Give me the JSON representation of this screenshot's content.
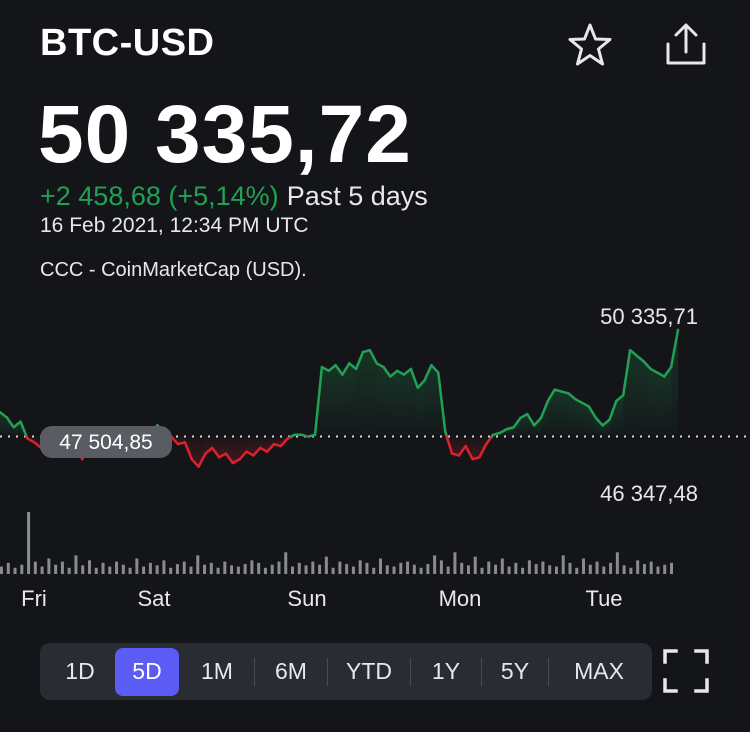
{
  "header": {
    "ticker": "BTC-USD",
    "price": "50 335,72",
    "change": "+2 458,68 (+5,14%)",
    "period": "Past 5 days",
    "timestamp": "16 Feb 2021, 12:34 PM UTC",
    "source": "CCC - CoinMarketCap (USD)."
  },
  "icons": {
    "favorite": "star-icon",
    "share": "share-icon",
    "fullscreen": "fullscreen-icon"
  },
  "colors": {
    "up": "#21a154",
    "down": "#e0202b",
    "accent": "#5b5cf6",
    "background": "#141519"
  },
  "chart_data": {
    "type": "line",
    "x_labels": [
      "Fri",
      "Sat",
      "Sun",
      "Mon",
      "Tue"
    ],
    "previous_close": 47504.85,
    "previous_close_label": "47 504,85",
    "high_label": "50 335,71",
    "low_label": "46 347,48",
    "ylim": [
      46347.48,
      50335.71
    ],
    "price_series": [
      48150,
      48010,
      47750,
      47900,
      47450,
      47350,
      47200,
      47380,
      47150,
      47600,
      47700,
      47450,
      46900,
      47300,
      47600,
      47750,
      47350,
      47550,
      47400,
      47600,
      47700,
      47500,
      47650,
      47800,
      47600,
      47500,
      47300,
      47350,
      46900,
      46700,
      47050,
      47200,
      46950,
      47050,
      46800,
      46900,
      47100,
      47000,
      47200,
      47100,
      47300,
      47250,
      47450,
      47550,
      47550,
      47500,
      47550,
      49350,
      49250,
      49400,
      49150,
      49450,
      49300,
      49750,
      49800,
      49450,
      49350,
      49100,
      49250,
      49150,
      49300,
      48800,
      49000,
      49400,
      49200,
      47650,
      47050,
      47000,
      47250,
      46900,
      46950,
      47300,
      47550,
      47600,
      47700,
      47750,
      48000,
      48100,
      47800,
      48000,
      48450,
      48750,
      48700,
      48650,
      48500,
      48400,
      48300,
      48000,
      47800,
      47950,
      48450,
      48600,
      49800,
      49650,
      49500,
      49300,
      49200,
      49100,
      49350,
      50335.71
    ],
    "volume_series": [
      0.12,
      0.18,
      0.1,
      0.15,
      1.0,
      0.2,
      0.12,
      0.25,
      0.15,
      0.2,
      0.1,
      0.3,
      0.14,
      0.22,
      0.1,
      0.18,
      0.12,
      0.2,
      0.15,
      0.1,
      0.25,
      0.12,
      0.18,
      0.14,
      0.22,
      0.1,
      0.16,
      0.2,
      0.12,
      0.3,
      0.15,
      0.18,
      0.1,
      0.2,
      0.14,
      0.12,
      0.16,
      0.22,
      0.18,
      0.1,
      0.15,
      0.2,
      0.35,
      0.12,
      0.18,
      0.14,
      0.2,
      0.15,
      0.28,
      0.1,
      0.2,
      0.16,
      0.12,
      0.22,
      0.18,
      0.1,
      0.25,
      0.14,
      0.12,
      0.18,
      0.2,
      0.15,
      0.1,
      0.16,
      0.3,
      0.22,
      0.12,
      0.35,
      0.18,
      0.14,
      0.28,
      0.1,
      0.2,
      0.15,
      0.25,
      0.12,
      0.18,
      0.1,
      0.22,
      0.16,
      0.2,
      0.14,
      0.12,
      0.3,
      0.18,
      0.1,
      0.25,
      0.15,
      0.2,
      0.12,
      0.18,
      0.35,
      0.14,
      0.1,
      0.22,
      0.16,
      0.2,
      0.12,
      0.15,
      0.18
    ]
  },
  "ranges": [
    "1D",
    "5D",
    "1M",
    "6M",
    "YTD",
    "1Y",
    "5Y",
    "MAX"
  ],
  "selected_range": "5D"
}
